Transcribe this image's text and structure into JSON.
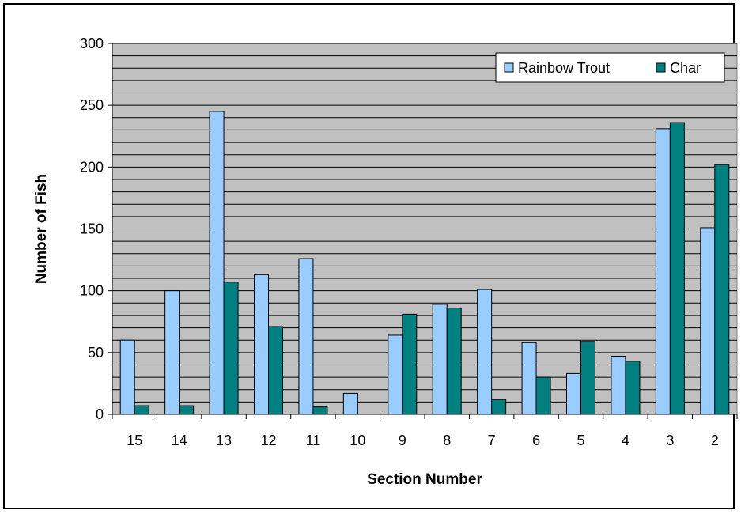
{
  "chart_data": {
    "type": "bar",
    "title": "",
    "xlabel": "Section Number",
    "ylabel": "Number of Fish",
    "categories": [
      "15",
      "14",
      "13",
      "12",
      "11",
      "10",
      "9",
      "8",
      "7",
      "6",
      "5",
      "4",
      "3",
      "2"
    ],
    "series": [
      {
        "name": "Rainbow Trout",
        "color": "#99ccff",
        "values": [
          60,
          100,
          245,
          113,
          126,
          17,
          64,
          89,
          101,
          58,
          33,
          47,
          231,
          151
        ]
      },
      {
        "name": "Char",
        "color": "#008080",
        "values": [
          7,
          7,
          107,
          71,
          6,
          0,
          81,
          86,
          12,
          30,
          59,
          43,
          236,
          202
        ]
      }
    ],
    "ylim": [
      0,
      300
    ],
    "yticks": [
      0,
      50,
      100,
      150,
      200,
      250,
      300
    ],
    "grid": true,
    "legend_position": "top-right",
    "colors": {
      "plot_background": "#c0c0c0",
      "gridline": "#000000"
    }
  }
}
